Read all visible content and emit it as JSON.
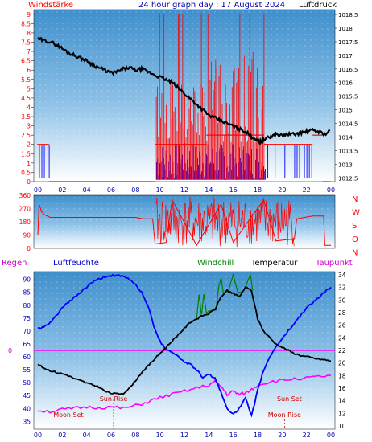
{
  "header": {
    "wind_label": "Windstärke",
    "title": "24 hour graph day : 17 August 2024",
    "pressure_label": "Luftdruck"
  },
  "bottom_header": {
    "rain_label": "Regen",
    "humidity_label": "Luftfeuchte",
    "windchill_label": "Windchill",
    "temperature_label": "Temperatur",
    "dewpoint_label": "Taupunkt"
  },
  "colors": {
    "wind": "#ff0000",
    "gust_bar": "#0000ff",
    "pressure": "#000000",
    "humidity": "#0000ff",
    "windchill": "#008000",
    "temperature": "#000000",
    "dewpoint": "#ff00ff",
    "rain_line": "#ff00ff",
    "axis_text_left": "#ff0000",
    "axis_text_right": "#000000",
    "sun_moon_text": "#cc0000"
  },
  "chart_data": [
    {
      "type": "line",
      "name": "wind-and-pressure",
      "x_ticks": [
        "00",
        "02",
        "04",
        "06",
        "08",
        "10",
        "12",
        "14",
        "16",
        "18",
        "20",
        "22",
        "00"
      ],
      "y_left_ticks": [
        "0",
        "0.5",
        "1",
        "1.5",
        "2",
        "2.5",
        "3",
        "3.5",
        "4",
        "4.5",
        "5",
        "5.5",
        "6",
        "6.5",
        "7",
        "7.5",
        "8",
        "8.5",
        "9"
      ],
      "y_right_ticks": [
        "1012.5",
        "1013",
        "1013.5",
        "1014",
        "1014.5",
        "1015",
        "1015.5",
        "1016",
        "1016.5",
        "1017",
        "1017.5",
        "1018",
        "1018.5"
      ],
      "y_left_range": [
        0,
        9.25
      ],
      "y_right_range": [
        1012.36,
        1018.68
      ],
      "x_range_hours": [
        -0.33,
        24.33
      ],
      "wind_blocks": [
        {
          "start": -0.05,
          "end": 0.9,
          "level": 2
        },
        {
          "start": 0.9,
          "end": 9.6,
          "level": 0
        },
        {
          "start": 9.6,
          "end": 13.8,
          "level": 2
        },
        {
          "start": 13.8,
          "end": 18.5,
          "level": 2.5
        },
        {
          "start": 18.5,
          "end": 22.5,
          "level": 2
        },
        {
          "start": 22.5,
          "end": 23.3,
          "level": 2.5
        },
        {
          "start": 23.3,
          "end": 24.0,
          "level": 0
        }
      ],
      "pressure": [
        [
          0,
          1017.6
        ],
        [
          0.5,
          1017.55
        ],
        [
          1,
          1017.5
        ],
        [
          1.5,
          1017.4
        ],
        [
          2,
          1017.25
        ],
        [
          2.5,
          1017.1
        ],
        [
          3,
          1017
        ],
        [
          3.5,
          1016.9
        ],
        [
          4,
          1016.8
        ],
        [
          4.5,
          1016.65
        ],
        [
          5,
          1016.55
        ],
        [
          5.5,
          1016.45
        ],
        [
          6,
          1016.35
        ],
        [
          6.5,
          1016.4
        ],
        [
          7,
          1016.5
        ],
        [
          7.5,
          1016.55
        ],
        [
          8,
          1016.45
        ],
        [
          8.5,
          1016.5
        ],
        [
          9,
          1016.4
        ],
        [
          9.5,
          1016.3
        ],
        [
          10,
          1016.2
        ],
        [
          10.5,
          1016.1
        ],
        [
          11,
          1016
        ],
        [
          11.5,
          1015.8
        ],
        [
          12,
          1015.6
        ],
        [
          12.5,
          1015.4
        ],
        [
          13,
          1015.2
        ],
        [
          13.5,
          1015
        ],
        [
          14,
          1014.8
        ],
        [
          14.5,
          1014.7
        ],
        [
          15,
          1014.6
        ],
        [
          15.5,
          1014.5
        ],
        [
          16,
          1014.4
        ],
        [
          16.5,
          1014.3
        ],
        [
          17,
          1014.2
        ],
        [
          17.5,
          1014
        ],
        [
          18,
          1013.9
        ],
        [
          18.2,
          1013.8
        ],
        [
          18.5,
          1013.9
        ],
        [
          19,
          1014
        ],
        [
          19.5,
          1014.1
        ],
        [
          20,
          1014.05
        ],
        [
          20.5,
          1014.1
        ],
        [
          21,
          1014.1
        ],
        [
          21.5,
          1014.15
        ],
        [
          22,
          1014.2
        ],
        [
          22.5,
          1014.25
        ],
        [
          23,
          1014.2
        ],
        [
          23.5,
          1014.1
        ],
        [
          24,
          1014.25
        ]
      ]
    },
    {
      "type": "line",
      "name": "wind-direction",
      "y_left_ticks": [
        "0",
        "90",
        "180",
        "270",
        "360"
      ],
      "y_right_labels": [
        "N",
        "W",
        "S",
        "O",
        "N"
      ],
      "y_range": [
        0,
        360
      ],
      "x_range_hours": [
        -0.33,
        24.33
      ],
      "direction": [
        [
          0,
          90
        ],
        [
          0.1,
          300
        ],
        [
          0.3,
          250
        ],
        [
          0.5,
          230
        ],
        [
          1,
          210
        ],
        [
          2,
          210
        ],
        [
          4,
          210
        ],
        [
          6,
          210
        ],
        [
          8,
          210
        ],
        [
          8.6,
          200
        ],
        [
          9.4,
          200
        ],
        [
          9.6,
          30
        ],
        [
          10.5,
          40
        ],
        [
          11,
          330
        ],
        [
          13,
          20
        ],
        [
          15,
          300
        ],
        [
          16,
          40
        ],
        [
          18.5,
          330
        ],
        [
          19.5,
          50
        ],
        [
          20.5,
          60
        ],
        [
          21,
          60
        ],
        [
          21.2,
          200
        ],
        [
          22.5,
          220
        ],
        [
          23.4,
          220
        ],
        [
          23.5,
          20
        ],
        [
          24,
          20
        ]
      ]
    },
    {
      "type": "line",
      "name": "humidity-temperature",
      "y_left_ticks": [
        "35",
        "40",
        "45",
        "50",
        "55",
        "60",
        "65",
        "70",
        "75",
        "80",
        "85",
        "90"
      ],
      "y_right_ticks": [
        "10",
        "12",
        "14",
        "16",
        "18",
        "20",
        "22",
        "24",
        "26",
        "28",
        "30",
        "32",
        "34"
      ],
      "y_left_range": [
        32,
        93
      ],
      "y_right_range": [
        9.5,
        34.5
      ],
      "x_range_hours": [
        -0.33,
        24.33
      ],
      "rain_value": "0",
      "humidity": [
        [
          0,
          71
        ],
        [
          0.5,
          71.5
        ],
        [
          1,
          73
        ],
        [
          1.5,
          76
        ],
        [
          2,
          79
        ],
        [
          2.5,
          81
        ],
        [
          3,
          83
        ],
        [
          3.5,
          85
        ],
        [
          4,
          87
        ],
        [
          4.5,
          89
        ],
        [
          5,
          90
        ],
        [
          5.5,
          91
        ],
        [
          6,
          91.5
        ],
        [
          6.5,
          91.5
        ],
        [
          7,
          91
        ],
        [
          7.5,
          90
        ],
        [
          8,
          88
        ],
        [
          8.5,
          85
        ],
        [
          9,
          80
        ],
        [
          9.5,
          72
        ],
        [
          10,
          66
        ],
        [
          10.5,
          63
        ],
        [
          11,
          62
        ],
        [
          11.5,
          60
        ],
        [
          12,
          58
        ],
        [
          12.5,
          57
        ],
        [
          13,
          55
        ],
        [
          13.5,
          52
        ],
        [
          14,
          53
        ],
        [
          14.5,
          52
        ],
        [
          15,
          46
        ],
        [
          15.5,
          40
        ],
        [
          16,
          38
        ],
        [
          16.5,
          40
        ],
        [
          17,
          44
        ],
        [
          17.5,
          37
        ],
        [
          18,
          47
        ],
        [
          18.5,
          55
        ],
        [
          19,
          60
        ],
        [
          19.5,
          64
        ],
        [
          20,
          67
        ],
        [
          20.5,
          70
        ],
        [
          21,
          73
        ],
        [
          21.5,
          76
        ],
        [
          22,
          79
        ],
        [
          22.5,
          81
        ],
        [
          23,
          83
        ],
        [
          23.5,
          85
        ],
        [
          24,
          87
        ]
      ],
      "temperature": [
        [
          0,
          19.8
        ],
        [
          0.5,
          19.2
        ],
        [
          1,
          18.8
        ],
        [
          1.5,
          18.5
        ],
        [
          2,
          18.3
        ],
        [
          2.5,
          18
        ],
        [
          3,
          17.5
        ],
        [
          3.5,
          17.2
        ],
        [
          4,
          16.8
        ],
        [
          4.5,
          16.5
        ],
        [
          5,
          16.2
        ],
        [
          5.5,
          15.5
        ],
        [
          6,
          15.2
        ],
        [
          6.5,
          15.1
        ],
        [
          7,
          15.2
        ],
        [
          7.5,
          16
        ],
        [
          8,
          17.2
        ],
        [
          8.5,
          18.5
        ],
        [
          9,
          19.5
        ],
        [
          9.5,
          20.5
        ],
        [
          10,
          21.5
        ],
        [
          10.5,
          22.5
        ],
        [
          11,
          23.5
        ],
        [
          11.5,
          24.5
        ],
        [
          12,
          25.5
        ],
        [
          12.5,
          26.5
        ],
        [
          13,
          27
        ],
        [
          13.5,
          27.5
        ],
        [
          14,
          27.8
        ],
        [
          14.5,
          28.5
        ],
        [
          15,
          30.5
        ],
        [
          15.5,
          31.5
        ],
        [
          16,
          31
        ],
        [
          16.5,
          30.5
        ],
        [
          17,
          32
        ],
        [
          17.5,
          31.5
        ],
        [
          18,
          27
        ],
        [
          18.5,
          25
        ],
        [
          19,
          24
        ],
        [
          19.5,
          23
        ],
        [
          20,
          22.5
        ],
        [
          20.5,
          22
        ],
        [
          21,
          21.5
        ],
        [
          21.5,
          21.2
        ],
        [
          22,
          21
        ],
        [
          22.5,
          20.8
        ],
        [
          23,
          20.6
        ],
        [
          23.5,
          20.5
        ],
        [
          24,
          20.3
        ]
      ],
      "windchill": [
        [
          13,
          27
        ],
        [
          13.2,
          31
        ],
        [
          13.4,
          27.5
        ],
        [
          13.6,
          31
        ],
        [
          13.8,
          28
        ],
        [
          14.6,
          28.5
        ],
        [
          14.8,
          32
        ],
        [
          15,
          33.5
        ],
        [
          15.2,
          31
        ],
        [
          15.6,
          31.5
        ],
        [
          16,
          34
        ],
        [
          16.4,
          31
        ],
        [
          16.8,
          31.5
        ],
        [
          17,
          32
        ],
        [
          17.4,
          34
        ],
        [
          17.6,
          31.5
        ]
      ],
      "dewpoint": [
        [
          0,
          12.5
        ],
        [
          1,
          12.3
        ],
        [
          2,
          12.6
        ],
        [
          3,
          12.8
        ],
        [
          4,
          13
        ],
        [
          5,
          12.9
        ],
        [
          6,
          13
        ],
        [
          7,
          12.8
        ],
        [
          8,
          13.2
        ],
        [
          9,
          13.8
        ],
        [
          10,
          14.5
        ],
        [
          11,
          15
        ],
        [
          12,
          15.5
        ],
        [
          13,
          16
        ],
        [
          14,
          16.5
        ],
        [
          14.5,
          17
        ],
        [
          15,
          16.3
        ],
        [
          15.5,
          15
        ],
        [
          16,
          15.5
        ],
        [
          16.5,
          15
        ],
        [
          17,
          15.2
        ],
        [
          17.5,
          15.8
        ],
        [
          18,
          16.5
        ],
        [
          19,
          17
        ],
        [
          20,
          17.2
        ],
        [
          21,
          17.5
        ],
        [
          22,
          17.6
        ],
        [
          23,
          17.8
        ],
        [
          24,
          18
        ]
      ],
      "annotations": {
        "sun_rise": "Sun Rise",
        "sun_set": "Sun Set",
        "moon_set": "Moon Set",
        "moon_rise": "Moon Rise"
      },
      "annotation_hours": {
        "sun_rise": 6.2,
        "sun_set": 20.6,
        "moon_set": 2.5,
        "moon_rise": 20.2
      }
    }
  ]
}
